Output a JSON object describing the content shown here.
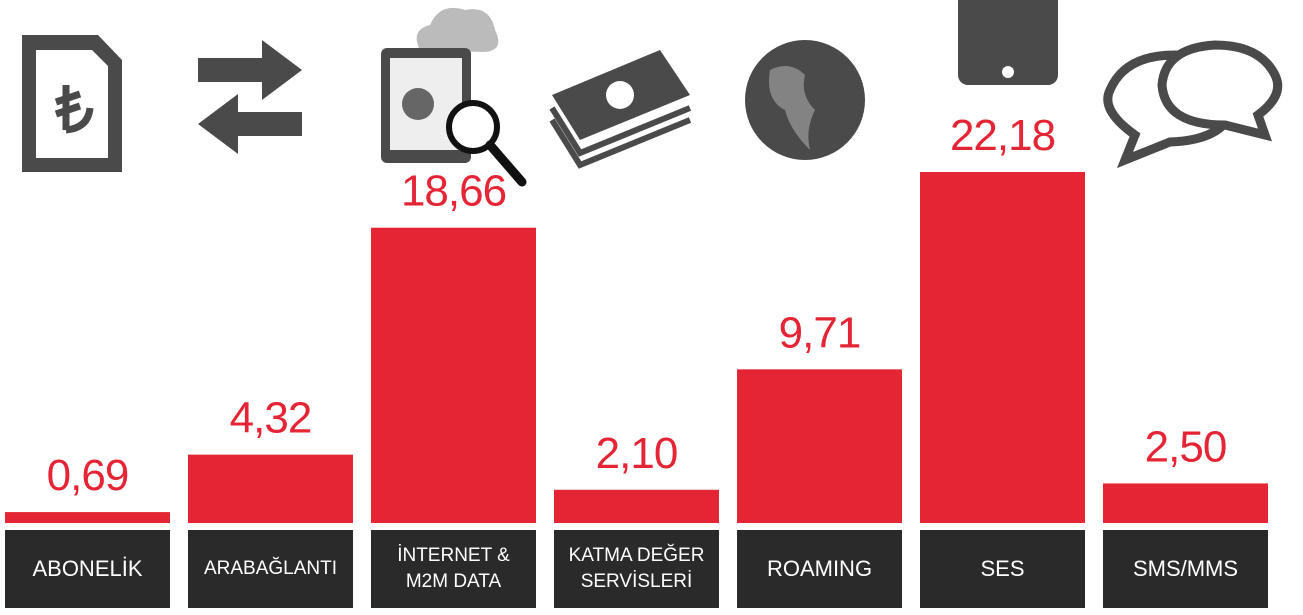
{
  "chart_data": {
    "type": "bar",
    "categories": [
      "ABONELİK",
      "ARABAĞLANTI",
      "İNTERNET &\nM2M DATA",
      "KATMA DEĞER\nSERVİSLERİ",
      "ROAMING",
      "SES",
      "SMS/MMS"
    ],
    "values": [
      0.69,
      4.32,
      18.66,
      2.1,
      9.71,
      22.18,
      2.5
    ],
    "value_labels": [
      "0,69",
      "4,32",
      "18,66",
      "2,10",
      "9,71",
      "22,18",
      "2,50"
    ],
    "color": "#e42534"
  }
}
